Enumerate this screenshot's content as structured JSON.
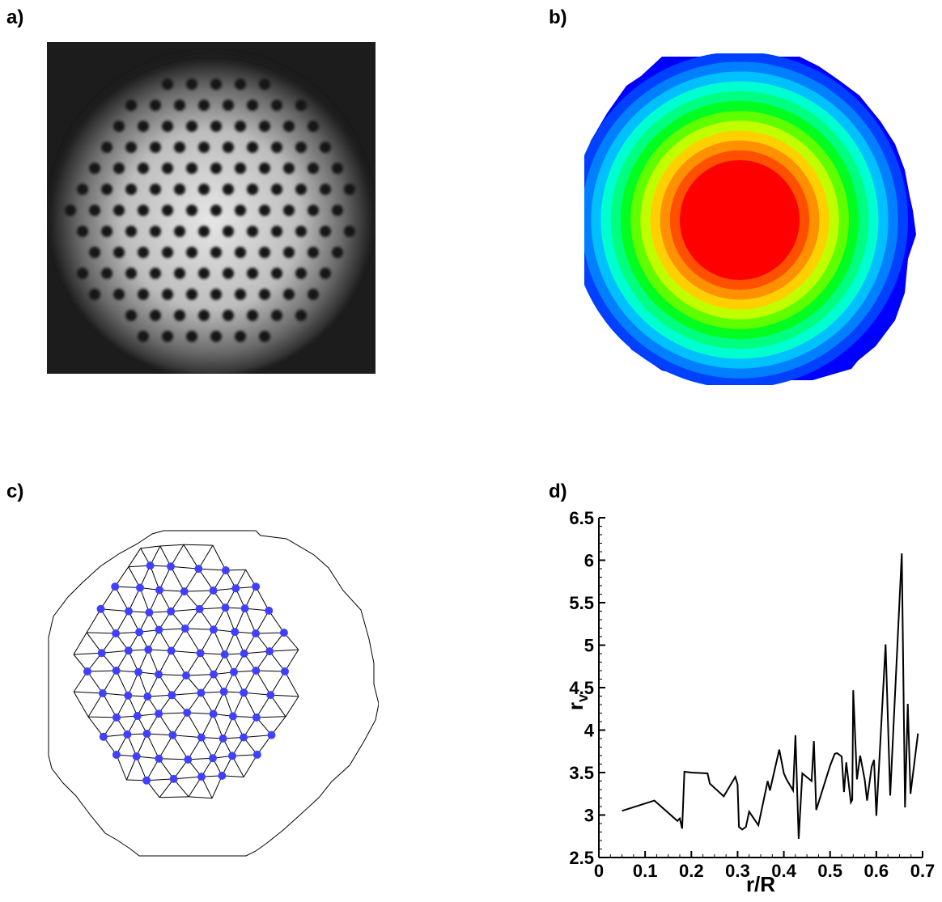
{
  "panels": {
    "a": {
      "label": "a)"
    },
    "b": {
      "label": "b)",
      "colors": [
        "#0000ff",
        "#0040ff",
        "#0080ff",
        "#00c0ff",
        "#00ffd0",
        "#00ff80",
        "#00ff20",
        "#60ff00",
        "#c0ff00",
        "#ffd000",
        "#ff9000",
        "#ff5000",
        "#ff0000"
      ]
    },
    "c": {
      "label": "c)",
      "dot_color": "#4040ff"
    },
    "d": {
      "label": "d)"
    }
  },
  "chart_data": {
    "type": "line",
    "title": "",
    "xlabel": "r/R",
    "ylabel": "r",
    "ylabel_subscript": "v",
    "xlim": [
      0,
      0.7
    ],
    "ylim": [
      2.5,
      6.5
    ],
    "x_ticks": [
      "0",
      "0.1",
      "0.2",
      "0.3",
      "0.4",
      "0.5",
      "0.6",
      "0.7"
    ],
    "y_ticks": [
      "2.5",
      "3",
      "3.5",
      "4",
      "4.5",
      "5",
      "5.5",
      "6",
      "6.5"
    ],
    "grid": false,
    "series": [
      {
        "x": [
          0.05,
          0.12,
          0.17,
          0.175,
          0.18,
          0.185,
          0.2,
          0.235,
          0.24,
          0.27,
          0.295,
          0.3,
          0.303,
          0.31,
          0.318,
          0.325,
          0.345,
          0.365,
          0.37,
          0.39,
          0.4,
          0.405,
          0.408,
          0.42,
          0.425,
          0.432,
          0.44,
          0.46,
          0.465,
          0.47,
          0.5,
          0.51,
          0.515,
          0.525,
          0.53,
          0.535,
          0.545,
          0.548,
          0.55,
          0.558,
          0.565,
          0.575,
          0.58,
          0.59,
          0.595,
          0.6,
          0.62,
          0.63,
          0.655,
          0.662,
          0.668,
          0.674,
          0.69
        ],
        "y": [
          3.05,
          3.17,
          2.93,
          2.96,
          2.84,
          3.51,
          3.5,
          3.49,
          3.37,
          3.22,
          3.45,
          3.36,
          2.86,
          2.83,
          2.86,
          3.04,
          2.88,
          3.4,
          3.29,
          3.77,
          3.49,
          3.43,
          3.4,
          3.29,
          3.94,
          2.72,
          3.49,
          3.4,
          3.87,
          3.06,
          3.58,
          3.72,
          3.73,
          3.69,
          3.27,
          3.62,
          3.15,
          3.18,
          4.47,
          3.42,
          3.7,
          3.41,
          3.17,
          3.57,
          3.65,
          2.99,
          5.01,
          3.23,
          6.08,
          3.09,
          4.31,
          3.25,
          3.96
        ]
      }
    ]
  }
}
